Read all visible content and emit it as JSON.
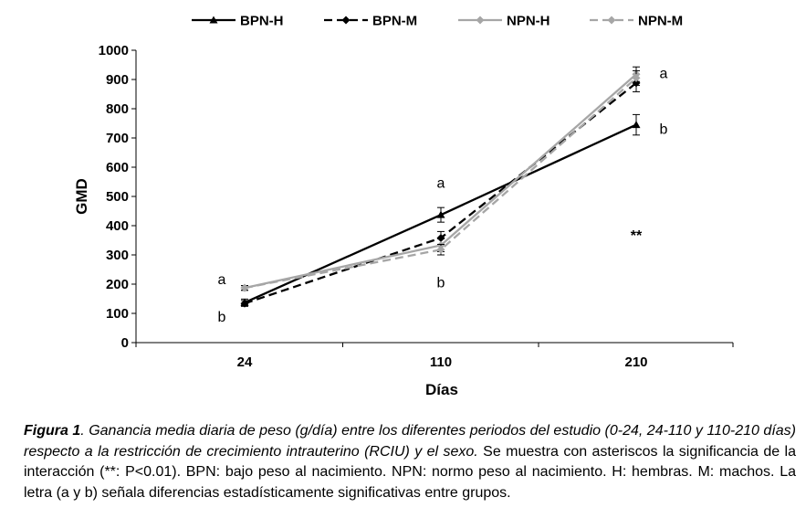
{
  "chart_data": {
    "type": "line",
    "categories": [
      "24",
      "110",
      "210"
    ],
    "xlabel": "Días",
    "ylabel": "GMD",
    "ylim": [
      0,
      1000
    ],
    "yticks": [
      0,
      100,
      200,
      300,
      400,
      500,
      600,
      700,
      800,
      900,
      1000
    ],
    "grid": false,
    "legend_position": "top",
    "series": [
      {
        "name": "BPN-H",
        "values": [
          137,
          437,
          745
        ],
        "errors": [
          12,
          25,
          35
        ],
        "color": "#000000",
        "dashed": false,
        "marker": "triangle"
      },
      {
        "name": "BPN-M",
        "values": [
          134,
          358,
          888
        ],
        "errors": [
          10,
          22,
          30
        ],
        "color": "#000000",
        "dashed": true,
        "marker": "diamond"
      },
      {
        "name": "NPN-H",
        "values": [
          187,
          333,
          918
        ],
        "errors": [
          8,
          22,
          25
        ],
        "color": "#a6a6a6",
        "dashed": false,
        "marker": "diamond"
      },
      {
        "name": "NPN-M",
        "values": [
          187,
          318,
          905
        ],
        "errors": [
          8,
          18,
          25
        ],
        "color": "#a6a6a6",
        "dashed": true,
        "marker": "diamond"
      }
    ],
    "annotations": [
      {
        "text": "a",
        "x": "24",
        "y": 215
      },
      {
        "text": "b",
        "x": "24",
        "y": 88
      },
      {
        "text": "a",
        "x": "110",
        "y": 545
      },
      {
        "text": "b",
        "x": "110",
        "y": 205
      },
      {
        "text": "a",
        "x": "210",
        "y": 920
      },
      {
        "text": "b",
        "x": "210",
        "y": 730
      },
      {
        "text": "**",
        "x": "210",
        "y": 365,
        "bold": true
      }
    ]
  },
  "caption": {
    "title": "Figura 1",
    "italic_part": ". Ganancia media diaria de peso (g/día) entre los diferentes periodos del estudio (0-24, 24-110 y 110-210 días) respecto a la restricción de crecimiento intrauterino (RCIU) y el sexo.",
    "normal_part": " Se muestra con asteriscos la significancia de la interacción (**: P<0.01). BPN: bajo peso al nacimiento. NPN: normo peso al nacimiento. H: hembras. M: machos. La letra (a y b) señala diferencias estadísticamente significativas entre grupos."
  }
}
